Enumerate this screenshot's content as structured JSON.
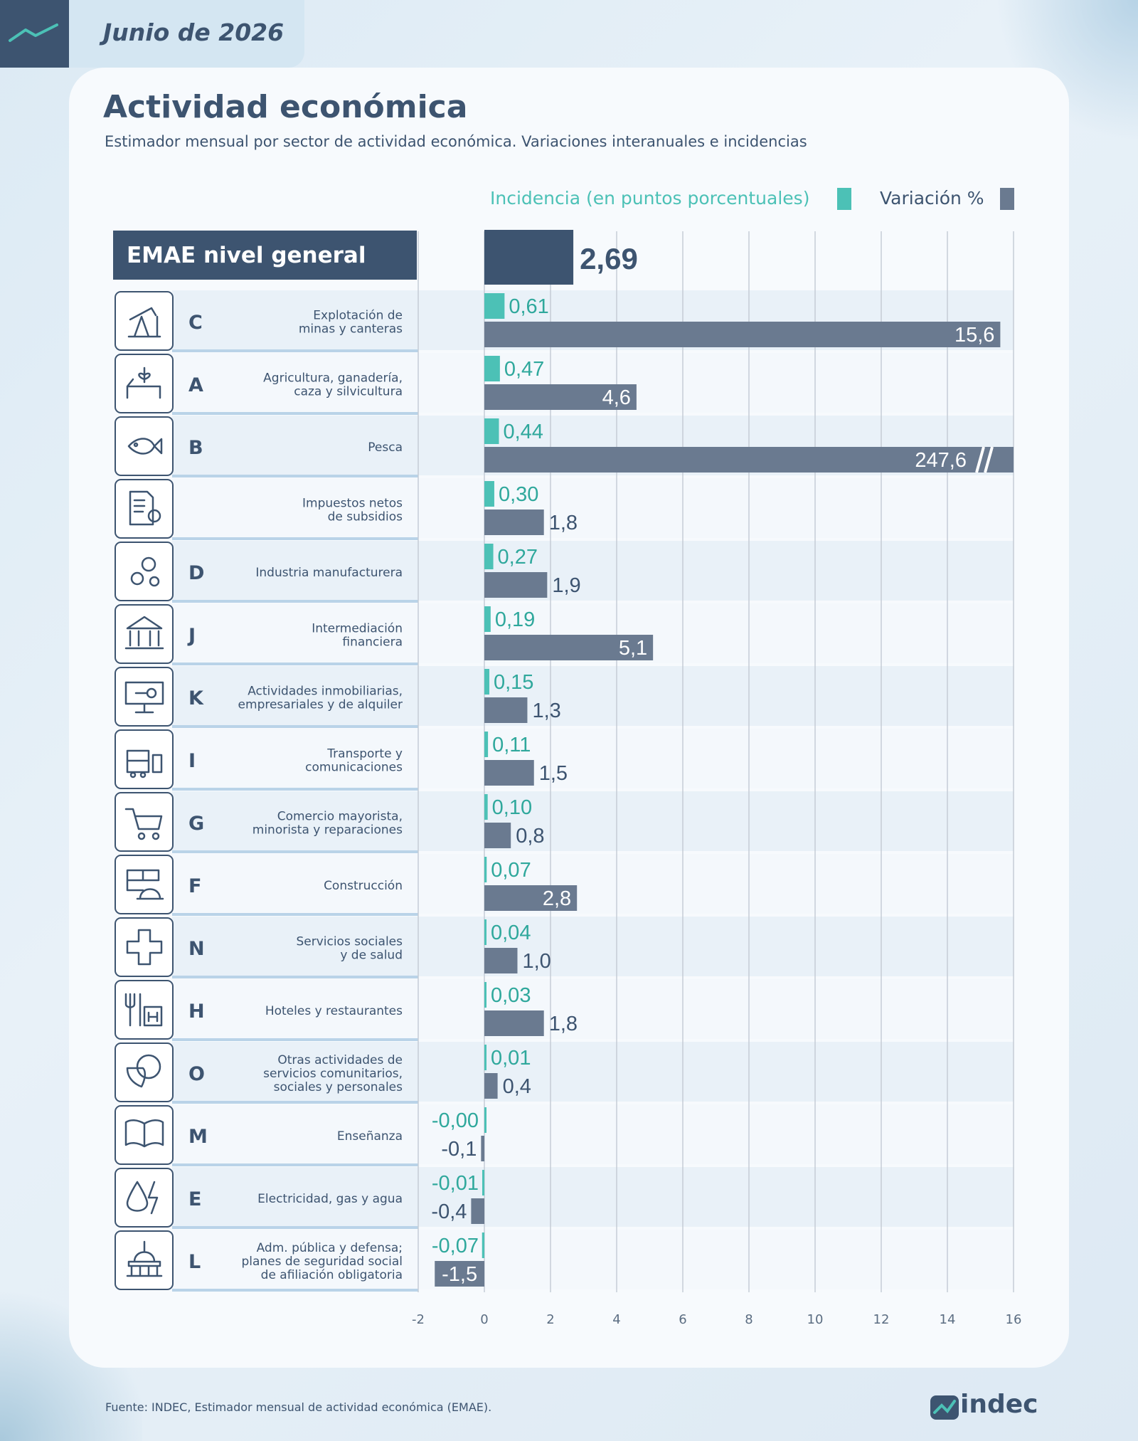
{
  "header": {
    "date": "Junio de 2026"
  },
  "title": "Actividad económica",
  "subtitle": "Estimador mensual por sector de actividad económica. Variaciones interanuales e incidencias",
  "legend": {
    "incidence_label": "Incidencia (en puntos porcentuales)",
    "variation_label": "Variación %"
  },
  "total": {
    "label": "EMAE nivel general",
    "value": 2.69,
    "value_label": "2,69"
  },
  "colors": {
    "incidence": "#4cc1b6",
    "variation": "#6a7a90",
    "total": "#3d5470",
    "text": "#3d5470"
  },
  "chart_data": {
    "type": "bar",
    "xlim": [
      -2,
      16
    ],
    "ticks": [
      "-2",
      "0",
      "2",
      "4",
      "6",
      "8",
      "10",
      "12",
      "14",
      "16"
    ],
    "legend_position": "top-right",
    "grid": true,
    "series_names": [
      "Incidencia (en puntos porcentuales)",
      "Variación %"
    ],
    "rows": [
      {
        "code": "C",
        "icon": "oil-pump-icon",
        "label_lines": [
          "Explotación de",
          "minas y canteras"
        ],
        "incidence": 0.61,
        "incidence_label": "0,61",
        "variation": 15.6,
        "variation_label": "15,6"
      },
      {
        "code": "A",
        "icon": "farm-icon",
        "label_lines": [
          "Agricultura, ganadería,",
          "caza y silvicultura"
        ],
        "incidence": 0.47,
        "incidence_label": "0,47",
        "variation": 4.6,
        "variation_label": "4,6"
      },
      {
        "code": "B",
        "icon": "fish-icon",
        "label_lines": [
          "Pesca"
        ],
        "incidence": 0.44,
        "incidence_label": "0,44",
        "variation": 247.6,
        "variation_label": "247,6",
        "truncated": true
      },
      {
        "code": "",
        "icon": "tax-document-icon",
        "label_lines": [
          "Impuestos netos",
          "de subsidios"
        ],
        "incidence": 0.3,
        "incidence_label": "0,30",
        "variation": 1.8,
        "variation_label": "1,8"
      },
      {
        "code": "D",
        "icon": "gears-icon",
        "label_lines": [
          "Industria manufacturera"
        ],
        "incidence": 0.27,
        "incidence_label": "0,27",
        "variation": 1.9,
        "variation_label": "1,9"
      },
      {
        "code": "J",
        "icon": "bank-icon",
        "label_lines": [
          "Intermediación",
          "financiera"
        ],
        "incidence": 0.19,
        "incidence_label": "0,19",
        "variation": 5.1,
        "variation_label": "5,1"
      },
      {
        "code": "K",
        "icon": "monitor-key-icon",
        "label_lines": [
          "Actividades inmobiliarias,",
          "empresariales y de alquiler"
        ],
        "incidence": 0.15,
        "incidence_label": "0,15",
        "variation": 1.3,
        "variation_label": "1,3"
      },
      {
        "code": "I",
        "icon": "bus-phone-icon",
        "label_lines": [
          "Transporte y",
          "comunicaciones"
        ],
        "incidence": 0.11,
        "incidence_label": "0,11",
        "variation": 1.5,
        "variation_label": "1,5"
      },
      {
        "code": "G",
        "icon": "shopping-cart-icon",
        "label_lines": [
          "Comercio mayorista,",
          "minorista y reparaciones"
        ],
        "incidence": 0.1,
        "incidence_label": "0,10",
        "variation": 0.8,
        "variation_label": "0,8"
      },
      {
        "code": "F",
        "icon": "construction-icon",
        "label_lines": [
          "Construcción"
        ],
        "incidence": 0.07,
        "incidence_label": "0,07",
        "variation": 2.8,
        "variation_label": "2,8"
      },
      {
        "code": "N",
        "icon": "health-cross-icon",
        "label_lines": [
          "Servicios sociales",
          "y de salud"
        ],
        "incidence": 0.04,
        "incidence_label": "0,04",
        "variation": 1.0,
        "variation_label": "1,0"
      },
      {
        "code": "H",
        "icon": "restaurant-hotel-icon",
        "label_lines": [
          "Hoteles y restaurantes"
        ],
        "incidence": 0.03,
        "incidence_label": "0,03",
        "variation": 1.8,
        "variation_label": "1,8"
      },
      {
        "code": "O",
        "icon": "culture-sports-icon",
        "label_lines": [
          "Otras actividades de",
          "servicios comunitarios,",
          "sociales y personales"
        ],
        "incidence": 0.01,
        "incidence_label": "0,01",
        "variation": 0.4,
        "variation_label": "0,4"
      },
      {
        "code": "M",
        "icon": "open-book-icon",
        "label_lines": [
          "Enseñanza"
        ],
        "incidence": -0.0,
        "incidence_label": "-0,00",
        "variation": -0.1,
        "variation_label": "-0,1"
      },
      {
        "code": "E",
        "icon": "water-electricity-icon",
        "label_lines": [
          "Electricidad, gas y agua"
        ],
        "incidence": -0.01,
        "incidence_label": "-0,01",
        "variation": -0.4,
        "variation_label": "-0,4"
      },
      {
        "code": "L",
        "icon": "government-building-icon",
        "label_lines": [
          "Adm. pública y defensa;",
          "planes de seguridad social",
          "de afiliación obligatoria"
        ],
        "incidence": -0.07,
        "incidence_label": "-0,07",
        "variation": -1.5,
        "variation_label": "-1,5"
      }
    ]
  },
  "footer": {
    "source": "Fuente: INDEC, Estimador mensual de actividad económica (EMAE).",
    "logo_text": "indec"
  }
}
